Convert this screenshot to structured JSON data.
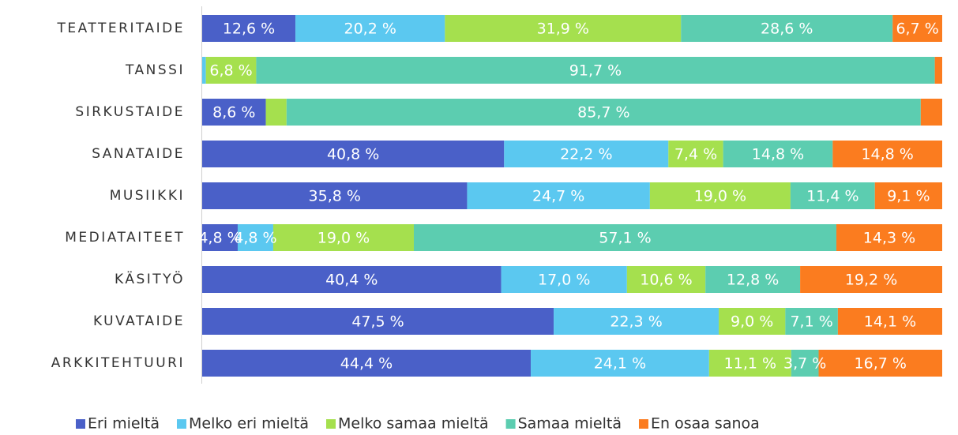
{
  "chart_data": {
    "type": "stacked-bar-horizontal",
    "categories": [
      "TEATTERITAIDE",
      "TANSSI",
      "SIRKUSTAIDE",
      "SANATAIDE",
      "MUSIIKKI",
      "MEDIATAITEET",
      "KÄSITYÖ",
      "KUVATAIDE",
      "ARKKITEHTUURI"
    ],
    "xlim": [
      0,
      100
    ],
    "legend": "bottom",
    "series": [
      {
        "name": "Eri mieltä",
        "color": "#4a60c8",
        "values": [
          12.6,
          0,
          8.6,
          40.8,
          35.8,
          4.8,
          40.4,
          47.5,
          44.4
        ],
        "value_labels": [
          "12,6 %",
          null,
          "8,6 %",
          "40,8 %",
          "35,8 %",
          "4,8 %",
          "40,4 %",
          "47,5 %",
          "44,4 %"
        ]
      },
      {
        "name": "Melko eri mieltä",
        "color": "#5bc8f0",
        "values": [
          20.2,
          0.5,
          0,
          22.2,
          24.7,
          4.8,
          17.0,
          22.3,
          24.1
        ],
        "value_labels": [
          "20,2 %",
          null,
          null,
          "22,2 %",
          "24,7 %",
          "4,8 %",
          "17,0 %",
          "22,3 %",
          "24,1 %"
        ]
      },
      {
        "name": "Melko samaa mieltä",
        "color": "#a5e04e",
        "values": [
          31.9,
          6.8,
          2.8,
          7.4,
          19.0,
          19.0,
          10.6,
          9.0,
          11.1
        ],
        "value_labels": [
          "31,9 %",
          "6,8 %",
          null,
          "7,4 %",
          "19,0 %",
          "19,0 %",
          "10,6 %",
          "9,0 %",
          "11,1 %"
        ]
      },
      {
        "name": "Samaa mieltä",
        "color": "#5ccdb0",
        "values": [
          28.6,
          91.7,
          85.7,
          14.8,
          11.4,
          57.1,
          12.8,
          7.1,
          3.7
        ],
        "value_labels": [
          "28,6 %",
          "91,7 %",
          "85,7 %",
          "14,8 %",
          "11,4 %",
          "57,1 %",
          "12,8 %",
          "7,1 %",
          "3,7 %"
        ]
      },
      {
        "name": "En osaa sanoa",
        "color": "#fb7c1f",
        "values": [
          6.7,
          1.0,
          2.9,
          14.8,
          9.1,
          14.3,
          19.2,
          14.1,
          16.7
        ],
        "value_labels": [
          "6,7 %",
          null,
          null,
          "14,8 %",
          "9,1 %",
          "14,3 %",
          "19,2 %",
          "14,1 %",
          "16,7 %"
        ]
      }
    ]
  }
}
